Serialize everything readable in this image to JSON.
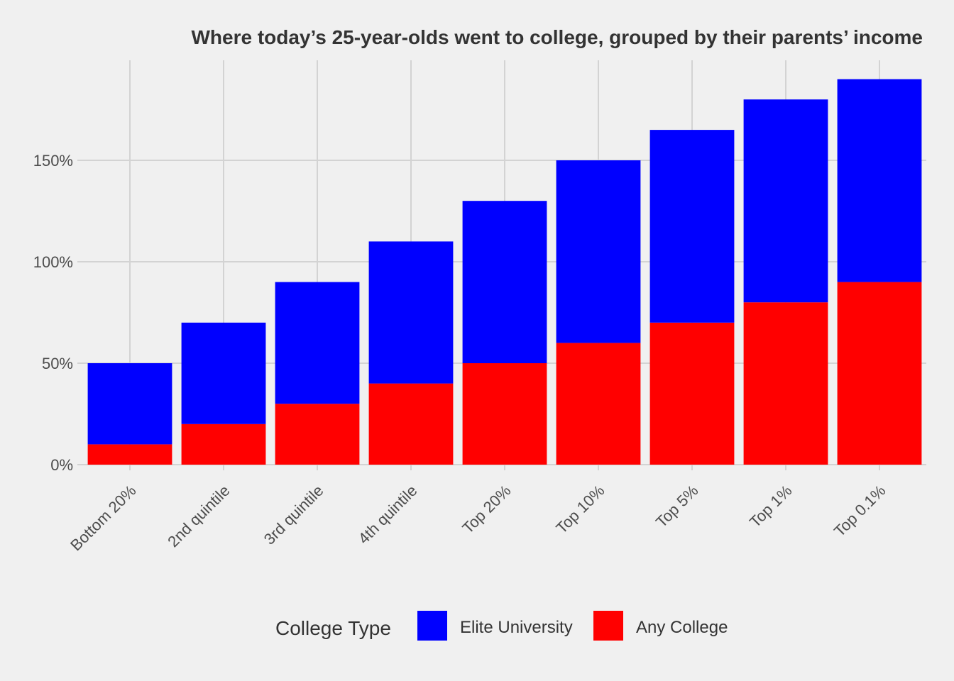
{
  "chart_data": {
    "type": "bar",
    "stacked": true,
    "title": "Where today’s 25-year-olds went to college, grouped by their parents’ income",
    "xlabel": "",
    "ylabel": "",
    "categories": [
      "Bottom 20%",
      "2nd quintile",
      "3rd quintile",
      "4th quintile",
      "Top 20%",
      "Top 10%",
      "Top 5%",
      "Top 1%",
      "Top 0.1%"
    ],
    "series": [
      {
        "name": "Any College",
        "color": "#ff0000",
        "values": [
          10,
          20,
          30,
          40,
          50,
          60,
          70,
          80,
          90
        ]
      },
      {
        "name": "Elite University",
        "color": "#0000ff",
        "values": [
          40,
          50,
          60,
          70,
          80,
          90,
          95,
          100,
          100
        ]
      }
    ],
    "ylim": [
      0,
      195
    ],
    "yticks": [
      0,
      50,
      100,
      150
    ],
    "ytick_labels": [
      "0%",
      "50%",
      "100%",
      "150%"
    ],
    "grid": true,
    "legend": {
      "title": "College Type",
      "position": "bottom",
      "entries": [
        {
          "label": "Elite University",
          "color": "#0000ff"
        },
        {
          "label": "Any College",
          "color": "#ff0000"
        }
      ]
    }
  }
}
